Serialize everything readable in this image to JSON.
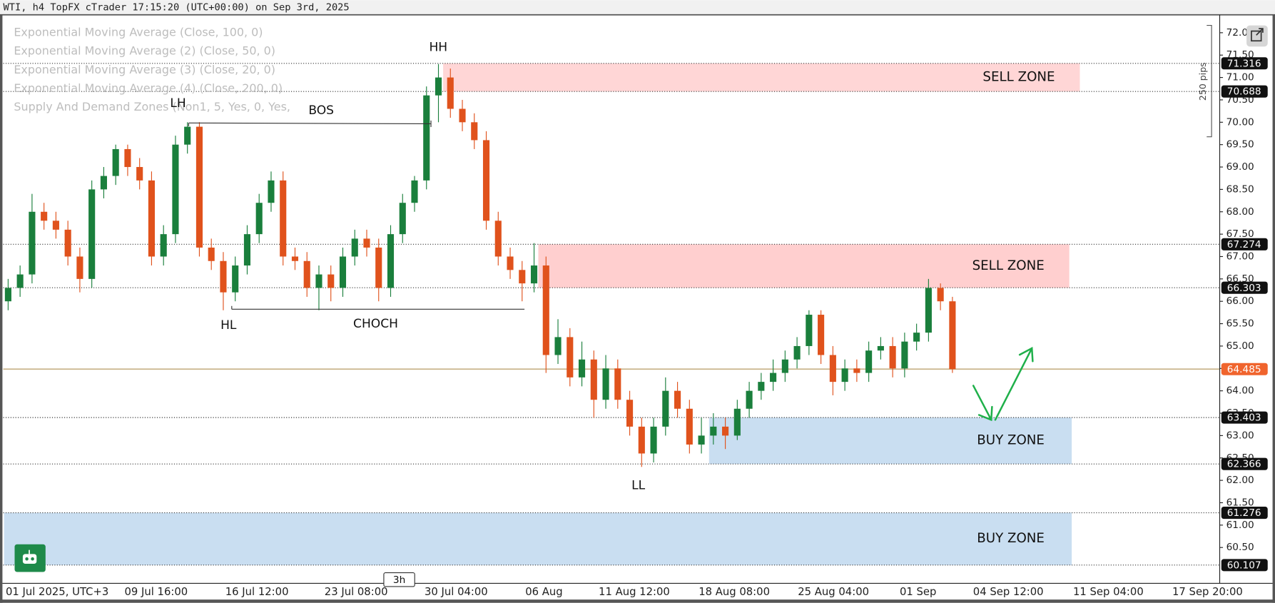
{
  "header": "WTI, h4 TopFX cTrader 17:15:20 (UTC+00:00) on Sep 3rd, 2025",
  "indicators": [
    "Exponential Moving Average (Close, 100, 0)",
    "Exponential Moving Average (2) (Close, 50, 0)",
    "Exponential Moving Average (3) (Close, 20, 0)",
    "Exponential Moving Average (4) (Close, 200, 0)",
    "Supply And Demand Zones (Non1, 5, Yes, 0, Yes,"
  ],
  "chart_data": {
    "type": "candlestick",
    "open": [
      66.0,
      66.3,
      66.6,
      68.0,
      67.8,
      67.6,
      67.0,
      66.5,
      68.5,
      68.8,
      69.4,
      69.0,
      68.7,
      67.0,
      67.5,
      69.5,
      69.9,
      67.2,
      66.9,
      66.2,
      66.8,
      67.5,
      68.2,
      68.7,
      67.0,
      66.9,
      66.3,
      66.6,
      66.3,
      67.0,
      67.4,
      67.2,
      66.3,
      67.5,
      68.2,
      68.7,
      70.6,
      71.0,
      70.3,
      70.0,
      69.6,
      67.8,
      67.0,
      66.7,
      66.4,
      66.8,
      64.8,
      65.2,
      64.3,
      64.7,
      63.8,
      64.5,
      63.8,
      63.2,
      62.6,
      63.2,
      64.0,
      63.6,
      62.8,
      63.0,
      63.2,
      63.0,
      63.6,
      64.0,
      64.2,
      64.4,
      64.7,
      65.0,
      65.7,
      64.8,
      64.2,
      64.5,
      64.4,
      64.9,
      65.0,
      64.5,
      65.1,
      65.3,
      66.3,
      66.0
    ],
    "high": [
      66.5,
      66.8,
      68.4,
      68.2,
      68.0,
      67.8,
      67.2,
      68.7,
      69.0,
      69.5,
      69.5,
      69.2,
      68.9,
      67.7,
      69.7,
      70.0,
      70.0,
      67.4,
      67.1,
      67.0,
      67.7,
      68.4,
      68.9,
      68.9,
      67.2,
      67.1,
      66.8,
      66.8,
      67.2,
      67.6,
      67.6,
      67.4,
      67.7,
      68.4,
      68.8,
      70.8,
      71.3,
      71.2,
      70.5,
      70.2,
      69.8,
      68.0,
      67.2,
      66.9,
      67.3,
      67.0,
      65.6,
      65.4,
      65.1,
      64.9,
      64.8,
      64.7,
      64.0,
      63.4,
      63.4,
      64.3,
      64.2,
      63.8,
      63.4,
      63.5,
      63.4,
      63.8,
      64.2,
      64.4,
      64.7,
      64.9,
      65.2,
      65.8,
      65.8,
      65.0,
      64.7,
      64.7,
      65.1,
      65.2,
      65.2,
      65.3,
      65.5,
      66.5,
      66.4,
      66.1
    ],
    "low": [
      65.8,
      66.1,
      66.4,
      67.6,
      67.4,
      66.8,
      66.2,
      66.3,
      68.3,
      68.6,
      68.8,
      68.5,
      66.8,
      66.8,
      67.3,
      69.3,
      67.0,
      66.7,
      65.8,
      66.0,
      66.6,
      67.3,
      68.0,
      66.8,
      66.7,
      66.1,
      65.8,
      66.0,
      66.1,
      66.8,
      67.0,
      66.0,
      66.1,
      67.3,
      68.0,
      68.5,
      70.0,
      70.1,
      69.8,
      69.4,
      67.6,
      66.8,
      66.5,
      66.0,
      66.2,
      64.4,
      64.6,
      64.1,
      64.1,
      63.4,
      63.6,
      63.6,
      63.0,
      62.3,
      62.4,
      63.0,
      63.4,
      62.6,
      62.6,
      62.8,
      62.7,
      62.9,
      63.4,
      63.8,
      64.0,
      64.2,
      64.5,
      64.8,
      64.6,
      63.9,
      64.0,
      64.2,
      64.2,
      64.7,
      64.3,
      64.3,
      64.9,
      65.1,
      65.8,
      64.4
    ],
    "close": [
      66.3,
      66.6,
      68.0,
      67.8,
      67.6,
      67.0,
      66.5,
      68.5,
      68.8,
      69.4,
      69.0,
      68.7,
      67.0,
      67.5,
      69.5,
      69.9,
      67.2,
      66.9,
      66.2,
      66.8,
      67.5,
      68.2,
      68.7,
      67.0,
      66.9,
      66.3,
      66.6,
      66.3,
      67.0,
      67.4,
      67.2,
      66.3,
      67.5,
      68.2,
      68.7,
      70.6,
      71.0,
      70.3,
      70.0,
      69.6,
      67.8,
      67.0,
      66.7,
      66.4,
      66.8,
      64.8,
      65.2,
      64.3,
      64.7,
      63.8,
      64.5,
      63.8,
      63.2,
      62.6,
      63.2,
      64.0,
      63.6,
      62.8,
      63.0,
      63.2,
      63.0,
      63.6,
      64.0,
      64.2,
      64.4,
      64.7,
      65.0,
      65.7,
      64.8,
      64.2,
      64.5,
      64.4,
      64.9,
      65.0,
      64.5,
      65.1,
      65.3,
      66.3,
      66.0,
      64.485
    ],
    "up_color": "#1a7f3c",
    "down_color": "#e0521c",
    "price_color": "#f0642d",
    "ylim": [
      59.7,
      72.4
    ],
    "yticks": [
      {
        "value": 60.5,
        "label": "60.50"
      },
      {
        "value": 61,
        "label": "61.00"
      },
      {
        "value": 61.5,
        "label": "61.50"
      },
      {
        "value": 62,
        "label": "62.00"
      },
      {
        "value": 62.5,
        "label": "62.50"
      },
      {
        "value": 63,
        "label": "63.00"
      },
      {
        "value": 63.5,
        "label": "63.50"
      },
      {
        "value": 64,
        "label": "64.00"
      },
      {
        "value": 64.5,
        "label": "64.50"
      },
      {
        "value": 65,
        "label": "65.00"
      },
      {
        "value": 65.5,
        "label": "65.50"
      },
      {
        "value": 66,
        "label": "66.00"
      },
      {
        "value": 66.5,
        "label": "66.50"
      },
      {
        "value": 67,
        "label": "67.00"
      },
      {
        "value": 67.5,
        "label": "67.50"
      },
      {
        "value": 68,
        "label": "68.00"
      },
      {
        "value": 68.5,
        "label": "68.50"
      },
      {
        "value": 69,
        "label": "69.00"
      },
      {
        "value": 69.5,
        "label": "69.50"
      },
      {
        "value": 70,
        "label": "70.00"
      },
      {
        "value": 70.5,
        "label": "70.50"
      },
      {
        "value": 71,
        "label": "71.00"
      },
      {
        "value": 71.5,
        "label": "71.50"
      },
      {
        "value": 72,
        "label": "72.00"
      }
    ],
    "x_labels": [
      "01 Jul 2025, UTC+3",
      "09 Jul 16:00",
      "16 Jul 12:00",
      "23 Jul 08:00",
      "30 Jul 04:00",
      "06 Aug",
      "11 Aug 12:00",
      "18 Aug 08:00",
      "25 Aug 04:00",
      "01 Sep",
      "04 Sep 12:00",
      "11 Sep 04:00",
      "17 Sep 20:00"
    ],
    "zones": [
      {
        "name": "SELL ZONE",
        "low": 70.688,
        "high": 71.316,
        "color": "#ffd4d4"
      },
      {
        "name": "SELL ZONE",
        "low": 66.303,
        "high": 67.274,
        "color": "#ffcccc"
      },
      {
        "name": "BUY ZONE",
        "low": 62.366,
        "high": 63.403,
        "color": "#c6dcf0"
      },
      {
        "name": "BUY ZONE",
        "low": 60.107,
        "high": 61.276,
        "color": "#c6dcf0"
      }
    ],
    "annotations": [
      "HH",
      "LH",
      "BOS",
      "HL",
      "CHOCH",
      "LL"
    ],
    "ruler_label": "250 pips",
    "timeframe_label": "3h"
  }
}
